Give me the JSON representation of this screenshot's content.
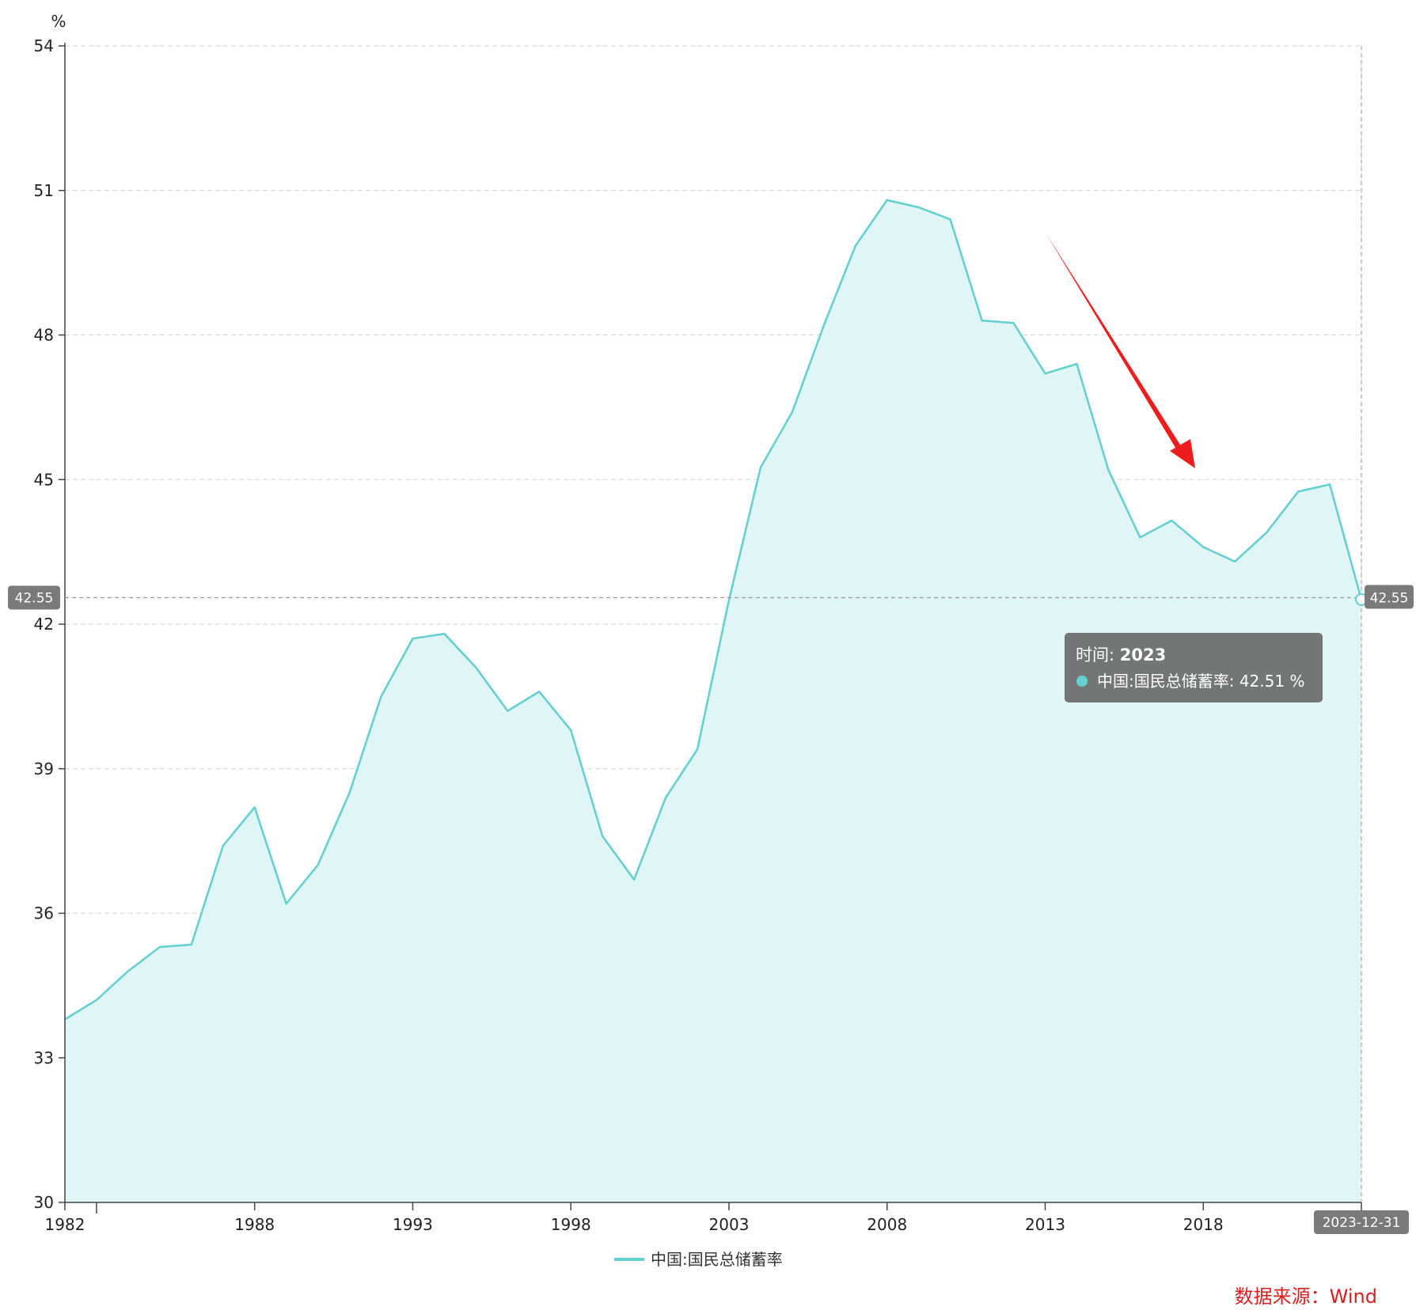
{
  "chart_data": {
    "type": "area",
    "y_unit": "%",
    "ylim": [
      30,
      54
    ],
    "y_ticks": [
      30,
      33,
      36,
      39,
      42,
      45,
      48,
      51,
      54
    ],
    "x_range": [
      1982,
      2023
    ],
    "x_ticks": [
      "1982",
      "1988",
      "1993",
      "1998",
      "2003",
      "2008",
      "2013",
      "2018",
      "2023"
    ],
    "grid": true,
    "legend_position": "bottom",
    "series": [
      {
        "name": "中国:国民总储蓄率",
        "color": "#66d0d0",
        "fill": "#e0f5f6",
        "x": [
          1982,
          1983,
          1984,
          1985,
          1986,
          1987,
          1988,
          1989,
          1990,
          1991,
          1992,
          1993,
          1994,
          1995,
          1996,
          1997,
          1998,
          1999,
          2000,
          2001,
          2002,
          2003,
          2004,
          2005,
          2006,
          2007,
          2008,
          2009,
          2010,
          2011,
          2012,
          2013,
          2014,
          2015,
          2016,
          2017,
          2018,
          2019,
          2020,
          2021,
          2022,
          2023
        ],
        "values": [
          33.8,
          34.2,
          34.8,
          35.3,
          35.35,
          37.4,
          38.2,
          36.2,
          37.0,
          38.5,
          40.5,
          41.7,
          41.8,
          41.1,
          40.2,
          40.6,
          39.8,
          37.6,
          36.7,
          38.4,
          39.4,
          42.5,
          45.25,
          46.4,
          48.2,
          49.85,
          50.8,
          50.65,
          50.4,
          48.3,
          48.25,
          47.2,
          47.4,
          45.2,
          43.8,
          44.15,
          43.6,
          43.3,
          43.9,
          44.75,
          44.9,
          42.51
        ]
      }
    ],
    "crosshair": {
      "y_value_label": "42.55",
      "x_date_label": "2023-12-31"
    },
    "tooltip": {
      "time_label": "时间:",
      "time_value": "2023",
      "series_label": "中国:国民总储蓄率:",
      "value": "42.51",
      "unit": "%"
    },
    "annotation": {
      "type": "arrow",
      "color": "#ee1c1c",
      "meaning": "downward trend"
    }
  },
  "source": {
    "text": "数据来源：Wind",
    "color": "#d82020"
  }
}
